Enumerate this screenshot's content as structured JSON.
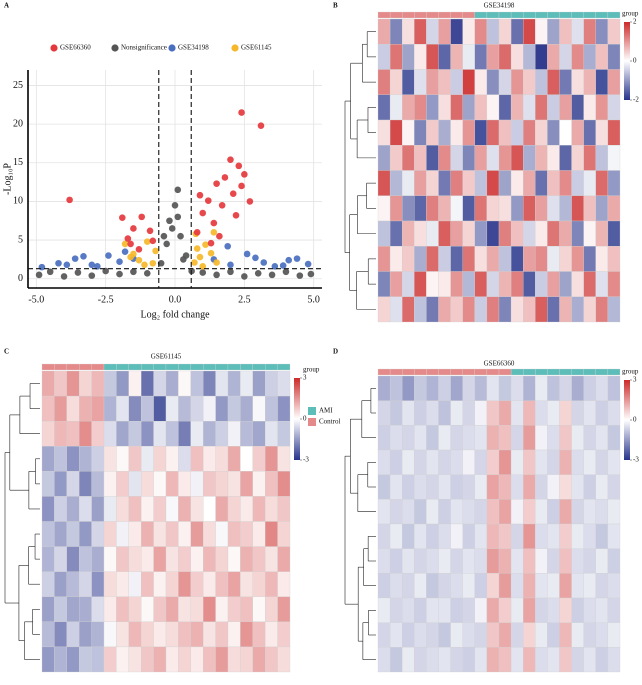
{
  "chart_data": [
    {
      "type": "scatter",
      "panel": "A",
      "x_label": "Log₂ fold change",
      "y_label": "-Log₁₀P",
      "xlim": [
        -5.3,
        5.3
      ],
      "ylim": [
        -1.2,
        27
      ],
      "xticks": [
        {
          "value": -5,
          "label": "-5.0"
        },
        {
          "value": -2.5,
          "label": "-2.5"
        },
        {
          "value": 0,
          "label": "0.0"
        },
        {
          "value": 2.5,
          "label": "2.5"
        },
        {
          "value": 5,
          "label": "5.0"
        }
      ],
      "yticks": [
        0,
        5,
        10,
        15,
        20,
        25
      ],
      "grid": true,
      "vlines": [
        -0.585,
        0.585
      ],
      "hline": 1.3,
      "series": [
        {
          "name": "GSE66360",
          "color": "#e5383d",
          "x": [
            -3.8,
            -1.9,
            -1.7,
            -1.5,
            -1.2,
            -0.9,
            -0.8,
            -1.6,
            -1.3,
            0.8,
            1.0,
            1.2,
            1.4,
            1.5,
            1.7,
            1.8,
            2.0,
            2.1,
            2.3,
            2.4,
            2.5,
            3.1,
            1.6,
            2.2,
            1.3,
            0.9,
            2.7,
            2.4
          ],
          "values": [
            10.2,
            7.9,
            5.2,
            6.5,
            8.0,
            6.2,
            4.9,
            4.5,
            3.8,
            6.0,
            8.5,
            10.1,
            7.2,
            12.3,
            9.5,
            13.1,
            15.4,
            11.0,
            14.6,
            12.0,
            13.5,
            19.8,
            5.5,
            8.2,
            4.6,
            10.8,
            10.0,
            21.5
          ]
        },
        {
          "name": "Nonsignificance",
          "color": "#555555",
          "x": [
            -4.9,
            -4.5,
            -4,
            -3.5,
            -3,
            -2.5,
            -2,
            -1.5,
            -1,
            -0.5,
            -0.3,
            -0.1,
            0,
            0.1,
            0.2,
            0.4,
            0.6,
            1,
            1.5,
            2,
            2.5,
            3,
            3.5,
            4,
            4.5,
            4.9,
            -0.2,
            0.1,
            0.3,
            -0.4
          ],
          "values": [
            0.5,
            0.9,
            0.3,
            0.8,
            0.4,
            1.0,
            0.6,
            0.9,
            0.7,
            2.0,
            4.5,
            6.5,
            9.5,
            8.0,
            5.5,
            3.0,
            1.0,
            0.8,
            0.5,
            0.9,
            0.3,
            0.7,
            0.5,
            0.9,
            0.4,
            0.6,
            7.5,
            11.5,
            2.5,
            5.5
          ]
        },
        {
          "name": "GSE34198",
          "color": "#4a6fc0",
          "x": [
            -4.8,
            -4.2,
            -3.6,
            -3.0,
            -2.4,
            -2.0,
            -1.8,
            -2.8,
            -3.3,
            1.4,
            2.0,
            2.6,
            3.2,
            3.9,
            4.4,
            4.8,
            1.9,
            2.9,
            -1.5,
            3.6,
            4.1,
            -3.9
          ],
          "values": [
            1.5,
            2.0,
            2.6,
            1.8,
            3.0,
            2.2,
            3.5,
            1.6,
            2.9,
            2.5,
            1.8,
            3.2,
            2.1,
            1.7,
            2.6,
            1.9,
            4.2,
            2.7,
            2.6,
            1.6,
            2.4,
            1.8
          ]
        },
        {
          "name": "GSE61145",
          "color": "#f5b82a",
          "x": [
            -1.8,
            -1.5,
            -1.3,
            -1.0,
            -0.8,
            -0.7,
            -1.6,
            -1.1,
            0.7,
            0.8,
            0.9,
            1.1,
            1.3,
            0.75,
            1.0,
            1.5,
            1.4
          ],
          "values": [
            4.5,
            3.2,
            2.4,
            4.8,
            2.0,
            3.6,
            2.8,
            1.8,
            2.1,
            3.9,
            2.8,
            4.4,
            3.3,
            5.8,
            1.6,
            2.1,
            6.0
          ]
        }
      ]
    },
    {
      "type": "heatmap",
      "panel": "B",
      "title": "GSE34198",
      "group_label": "group",
      "clim": [
        -2,
        2
      ],
      "cticks": [
        2,
        0,
        -2
      ],
      "colors": [
        "#27338a",
        "#ffffff",
        "#cc2a2a"
      ],
      "control_columns": 8,
      "groups": [
        {
          "color": "#5cbdb9"
        },
        {
          "color": "#e58a8b"
        }
      ],
      "values": [
        [
          0.8,
          -1.2,
          0.3,
          1.5,
          -0.4,
          0.9,
          -1.8,
          0.2,
          1.1,
          -0.6,
          0.4,
          -1.4,
          1.7,
          0.1,
          -0.9,
          0.6,
          -0.3,
          1.2,
          -1.1,
          0.5
        ],
        [
          -0.5,
          1.3,
          -0.9,
          0.2,
          1.6,
          -1.5,
          0.7,
          -0.2,
          -1.3,
          0.9,
          1.4,
          0.3,
          -0.7,
          -1.9,
          0.8,
          -0.4,
          1.1,
          -0.8,
          0.6,
          -1.2
        ],
        [
          1.2,
          0.4,
          -1.6,
          -0.3,
          0.9,
          0.6,
          -0.5,
          1.8,
          0.2,
          -1.1,
          -0.4,
          1.0,
          0.5,
          -0.6,
          1.5,
          -1.3,
          0.3,
          0.7,
          -1.7,
          0.9
        ],
        [
          -1.4,
          -0.2,
          0.8,
          1.1,
          -1.0,
          0.3,
          1.4,
          -0.9,
          0.6,
          0.1,
          -1.5,
          0.7,
          -0.3,
          1.3,
          -0.5,
          0.9,
          -1.6,
          0.2,
          1.0,
          -0.4
        ],
        [
          0.3,
          1.7,
          0.1,
          -1.2,
          0.5,
          -0.8,
          0.2,
          1.0,
          -1.7,
          1.4,
          0.6,
          -0.5,
          1.2,
          0.4,
          -1.1,
          0.0,
          0.8,
          -1.4,
          0.3,
          1.5
        ],
        [
          -0.9,
          0.5,
          1.3,
          0.6,
          -1.6,
          1.1,
          -0.4,
          -1.2,
          0.9,
          -0.3,
          1.0,
          1.6,
          -0.8,
          0.7,
          0.2,
          -1.5,
          0.4,
          1.3,
          -0.6,
          -0.1
        ],
        [
          1.6,
          -0.7,
          -0.2,
          0.9,
          0.4,
          -1.3,
          1.2,
          0.5,
          -0.6,
          1.7,
          -0.9,
          0.2,
          0.8,
          -1.4,
          0.6,
          1.1,
          -0.5,
          -0.2,
          1.4,
          -1.0
        ],
        [
          0.1,
          1.0,
          -1.1,
          -1.5,
          1.2,
          0.7,
          -0.1,
          -1.6,
          1.3,
          0.4,
          0.3,
          -1.0,
          1.5,
          0.9,
          -0.3,
          -0.7,
          1.6,
          0.6,
          -0.9,
          0.8
        ],
        [
          -0.6,
          -1.4,
          0.7,
          0.3,
          -0.2,
          1.5,
          0.9,
          0.4,
          -1.0,
          -1.8,
          1.2,
          0.6,
          -0.4,
          0.2,
          1.3,
          0.8,
          -1.2,
          0.1,
          0.7,
          -1.6
        ],
        [
          1.0,
          0.2,
          0.5,
          -0.8,
          1.4,
          -0.5,
          -1.5,
          1.3,
          0.3,
          0.8,
          -0.6,
          -1.7,
          0.9,
          1.1,
          -0.2,
          0.4,
          1.0,
          -1.3,
          0.2,
          0.6
        ],
        [
          -1.2,
          0.9,
          -0.4,
          1.6,
          0.1,
          0.2,
          1.0,
          -0.7,
          1.5,
          -0.4,
          0.7,
          1.2,
          -1.6,
          -0.5,
          0.9,
          -0.9,
          0.3,
          1.4,
          -0.3,
          1.1
        ],
        [
          0.4,
          -0.3,
          1.4,
          -0.6,
          -1.3,
          0.8,
          0.5,
          1.1,
          -0.5,
          1.2,
          -1.2,
          0.3,
          0.6,
          1.5,
          -1.4,
          0.7,
          -0.8,
          0.4,
          1.2,
          -0.7
        ]
      ]
    },
    {
      "type": "heatmap",
      "panel": "C",
      "title": "GSE61145",
      "group_label": "group",
      "clim": [
        -3,
        3
      ],
      "cticks": [
        3,
        0,
        -3
      ],
      "colors": [
        "#27338a",
        "#ffffff",
        "#cc2a2a"
      ],
      "control_columns": 5,
      "groups": [
        {
          "name": "AMI",
          "color": "#5cbdb9"
        },
        {
          "name": "Control",
          "color": "#e58a8b"
        }
      ],
      "values": [
        [
          1.2,
          0.8,
          1.5,
          0.6,
          1.0,
          -0.8,
          -1.5,
          0.2,
          -2.1,
          -0.6,
          -1.2,
          0.1,
          -0.9,
          -1.8,
          -0.4,
          -1.1,
          -0.3,
          -1.4,
          -0.7,
          -0.5
        ],
        [
          0.9,
          1.4,
          0.5,
          1.1,
          1.3,
          -1.1,
          -0.4,
          -1.7,
          -0.9,
          -2.4,
          -0.3,
          -1.0,
          -0.6,
          -0.2,
          -1.5,
          -0.8,
          -1.2,
          -0.1,
          -0.9,
          -1.6
        ],
        [
          0.6,
          1.0,
          0.9,
          1.6,
          0.7,
          -0.5,
          -1.3,
          -0.8,
          -1.6,
          -0.4,
          -0.9,
          -1.9,
          -0.3,
          -1.1,
          -0.7,
          -0.2,
          -1.0,
          -1.3,
          -0.4,
          -0.8
        ],
        [
          -1.3,
          -0.9,
          -1.6,
          -1.1,
          -0.7,
          0.4,
          0.1,
          0.8,
          -0.3,
          0.6,
          0.2,
          -0.5,
          0.9,
          0.3,
          0.5,
          1.2,
          0.0,
          0.7,
          1.5,
          0.4
        ],
        [
          -0.8,
          -1.5,
          -0.6,
          -1.8,
          -1.0,
          0.2,
          0.7,
          -0.4,
          0.5,
          0.1,
          1.0,
          0.3,
          -0.2,
          0.8,
          0.6,
          0.4,
          1.3,
          0.2,
          0.9,
          1.6
        ],
        [
          -1.6,
          -0.7,
          -1.2,
          -0.5,
          -1.4,
          -0.3,
          0.5,
          0.9,
          0.2,
          0.7,
          -0.1,
          1.1,
          0.4,
          0.0,
          1.2,
          0.6,
          0.3,
          1.0,
          0.5,
          0.8
        ],
        [
          -0.9,
          -1.3,
          -0.8,
          -1.5,
          -0.6,
          0.6,
          -0.2,
          0.3,
          1.1,
          0.4,
          0.8,
          0.2,
          1.4,
          0.5,
          -0.1,
          0.9,
          0.7,
          0.3,
          1.7,
          0.6
        ],
        [
          -1.1,
          -0.6,
          -1.7,
          -0.9,
          -1.2,
          0.1,
          0.8,
          0.5,
          0.3,
          1.3,
          0.4,
          0.7,
          0.2,
          1.0,
          0.6,
          0.1,
          1.1,
          0.8,
          0.4,
          1.2
        ],
        [
          -0.7,
          -1.4,
          -1.0,
          -0.6,
          -1.6,
          0.5,
          0.3,
          -0.2,
          0.9,
          0.2,
          0.6,
          1.5,
          0.7,
          0.3,
          0.9,
          1.3,
          0.4,
          0.6,
          1.0,
          0.3
        ],
        [
          -1.4,
          -0.8,
          -1.3,
          -1.2,
          -0.5,
          0.3,
          0.9,
          0.6,
          0.1,
          0.8,
          1.2,
          0.4,
          0.5,
          1.6,
          0.2,
          0.7,
          0.9,
          0.1,
          0.6,
          1.4
        ],
        [
          -1.0,
          -1.7,
          -0.7,
          -1.4,
          -1.1,
          -0.1,
          0.4,
          1.0,
          0.6,
          0.3,
          0.5,
          0.9,
          1.1,
          0.4,
          0.8,
          0.2,
          1.5,
          0.9,
          0.3,
          0.7
        ],
        [
          -1.5,
          -1.1,
          -1.5,
          -0.8,
          -0.9,
          0.7,
          0.2,
          0.4,
          0.8,
          1.1,
          0.3,
          0.6,
          0.3,
          0.9,
          1.4,
          0.5,
          0.6,
          1.2,
          0.8,
          0.5
        ]
      ]
    },
    {
      "type": "heatmap",
      "panel": "D",
      "title": "GSE66360",
      "group_label": "group",
      "clim": [
        -3,
        3
      ],
      "cticks": [
        3,
        0,
        -3
      ],
      "colors": [
        "#27338a",
        "#ffffff",
        "#cc2a2a"
      ],
      "control_columns": 11,
      "groups": [
        {
          "color": "#5cbdb9"
        },
        {
          "color": "#e58a8b"
        }
      ],
      "values": [
        [
          -1.2,
          -0.9,
          -1.5,
          -0.8,
          -1.1,
          -0.7,
          -1.3,
          -0.6,
          -1.0,
          -0.4,
          -0.8,
          -0.5,
          -1.1,
          -0.3,
          -0.9,
          -0.6,
          -1.2,
          -0.7,
          -0.5,
          -0.9
        ],
        [
          -0.6,
          -0.8,
          -0.4,
          -0.7,
          -0.5,
          -0.9,
          -0.3,
          -0.6,
          -0.2,
          0.8,
          1.2,
          -0.4,
          1.0,
          -0.5,
          -0.3,
          0.6,
          -0.6,
          -0.4,
          -0.7,
          -0.5
        ],
        [
          -0.7,
          -0.5,
          -0.6,
          -0.4,
          -0.8,
          -0.3,
          -0.6,
          -0.5,
          -0.4,
          1.1,
          0.9,
          -0.6,
          1.4,
          -0.2,
          -0.5,
          0.8,
          -0.3,
          -0.6,
          -0.4,
          -0.8
        ],
        [
          -0.5,
          -0.7,
          -0.3,
          -0.6,
          -0.4,
          -0.6,
          -0.5,
          -0.2,
          -0.6,
          0.7,
          1.5,
          -0.3,
          0.8,
          -0.4,
          -0.6,
          1.1,
          -0.5,
          -0.3,
          -0.6,
          -0.4
        ],
        [
          -0.8,
          -0.4,
          -0.7,
          -0.5,
          -0.6,
          -0.4,
          -0.7,
          -0.6,
          -0.3,
          1.3,
          1.0,
          -0.5,
          1.2,
          -0.6,
          -0.2,
          0.5,
          -0.4,
          -0.7,
          -0.3,
          -0.6
        ],
        [
          -0.4,
          -0.6,
          -0.5,
          -0.8,
          -0.3,
          -0.7,
          -0.4,
          -0.5,
          -0.6,
          0.9,
          1.3,
          -0.2,
          0.7,
          -0.3,
          -0.7,
          1.2,
          -0.6,
          -0.4,
          -0.5,
          -0.3
        ],
        [
          -0.6,
          -0.3,
          -0.8,
          -0.4,
          -0.7,
          -0.5,
          -0.2,
          -0.7,
          -0.4,
          1.0,
          0.8,
          -0.6,
          1.5,
          -0.5,
          -0.4,
          0.7,
          -0.3,
          -0.5,
          -0.8,
          -0.4
        ],
        [
          -0.5,
          -0.7,
          -0.4,
          -0.6,
          -0.5,
          -0.3,
          -0.6,
          -0.4,
          -0.5,
          1.4,
          1.1,
          -0.4,
          0.9,
          -0.2,
          -0.6,
          0.9,
          -0.5,
          -0.6,
          -0.3,
          -0.7
        ],
        [
          -0.7,
          -0.5,
          -0.6,
          -0.3,
          -0.8,
          -0.6,
          -0.5,
          -0.3,
          -0.7,
          0.6,
          1.4,
          -0.5,
          1.1,
          -0.4,
          -0.3,
          1.3,
          -0.4,
          -0.3,
          -0.6,
          -0.5
        ],
        [
          -0.3,
          -0.6,
          -0.5,
          -0.7,
          -0.4,
          -0.4,
          -0.7,
          -0.6,
          -0.2,
          1.2,
          0.7,
          -0.3,
          1.3,
          -0.6,
          -0.5,
          0.6,
          -0.7,
          -0.5,
          -0.4,
          -0.6
        ],
        [
          -0.6,
          -0.4,
          -0.7,
          -0.5,
          -0.6,
          -0.8,
          -0.3,
          -0.5,
          -0.6,
          0.8,
          1.2,
          -0.6,
          0.6,
          -0.3,
          -0.7,
          1.0,
          -0.3,
          -0.6,
          -0.5,
          -0.3
        ],
        [
          -0.5,
          -0.8,
          -0.3,
          -0.6,
          -0.5,
          -0.4,
          -0.6,
          -0.7,
          -0.4,
          1.1,
          0.9,
          -0.4,
          1.0,
          -0.5,
          -0.4,
          0.8,
          -0.6,
          -0.4,
          -0.7,
          -0.5
        ]
      ]
    }
  ]
}
